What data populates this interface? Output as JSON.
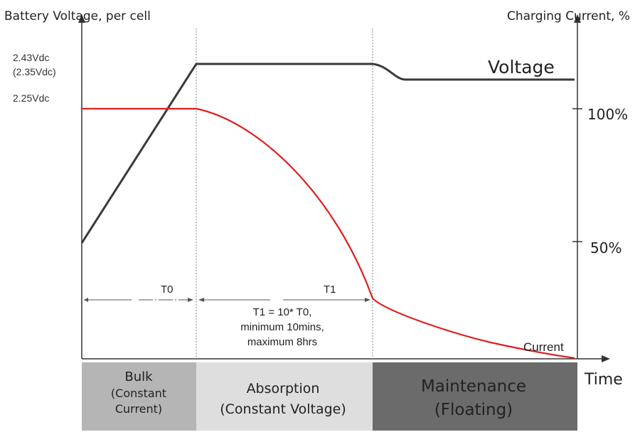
{
  "chart_data": {
    "type": "line",
    "y_left_title": "Battery Voltage, per cell",
    "y_right_title": "Charging Current, %",
    "x_title": "Time",
    "voltage_labels": [
      "2.43Vdc",
      "(2.35Vdc)",
      "2.25Vdc"
    ],
    "current_ticks": [
      "100%",
      "50%"
    ],
    "series": [
      {
        "name": "Voltage",
        "color": "#3a3a3a"
      },
      {
        "name": "Current",
        "color": "#e01e1e"
      }
    ],
    "annotations": {
      "t0": "T0",
      "t1": "T1",
      "t1_note": [
        "T1 = 10* T0,",
        "minimum 10mins,",
        "maximum 8hrs"
      ]
    },
    "phases": [
      {
        "lines": [
          "Bulk",
          "(Constant",
          "Current)"
        ],
        "color": "#b5b5b5"
      },
      {
        "lines": [
          "Absorption",
          "(Constant Voltage)"
        ],
        "color": "#dedede"
      },
      {
        "lines": [
          "Maintenance",
          "(Floating)"
        ],
        "color": "#6b6b6b"
      }
    ]
  }
}
